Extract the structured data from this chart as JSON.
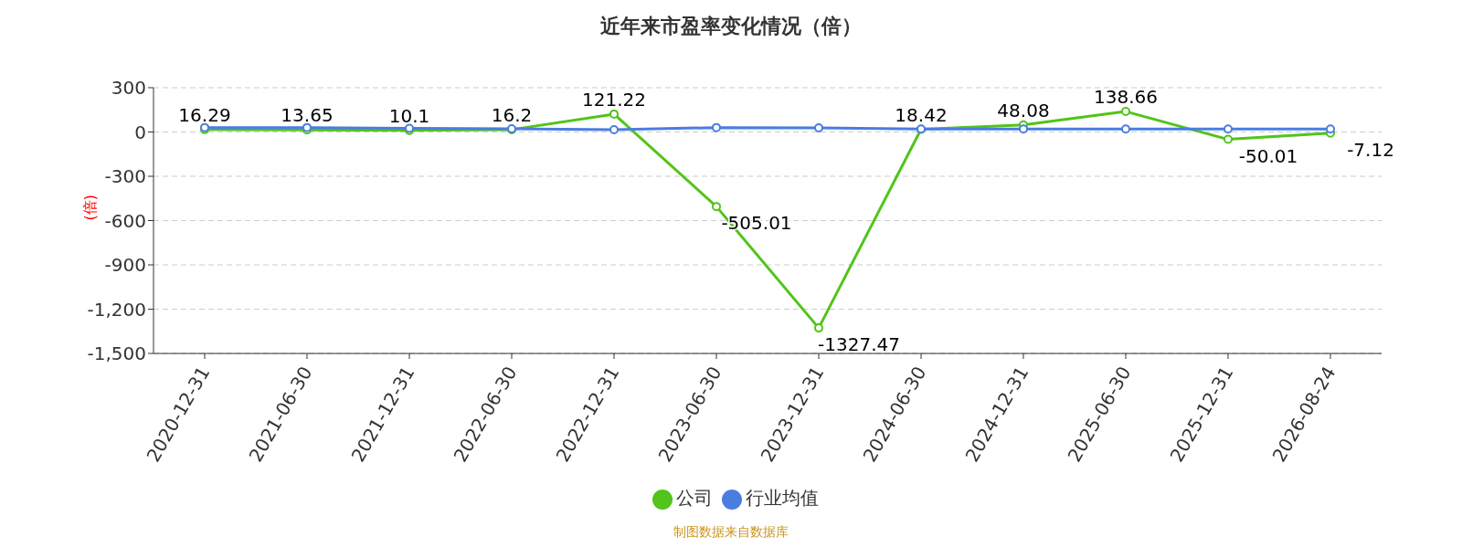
{
  "chart_data": {
    "type": "line",
    "title": "近年来市盈率变化情况（倍）",
    "ylabel": "(倍)",
    "categories": [
      "2020-12-31",
      "2021-06-30",
      "2021-12-31",
      "2022-06-30",
      "2022-12-31",
      "2023-06-30",
      "2023-12-31",
      "2024-06-30",
      "2024-12-31",
      "2025-06-30",
      "2025-12-31",
      "2026-08-24"
    ],
    "series": [
      {
        "name": "公司",
        "color": "#52c41a",
        "values": [
          16.29,
          13.65,
          10.1,
          16.2,
          121.22,
          -505.01,
          -1327.47,
          18.42,
          48.08,
          138.66,
          -50.01,
          -7.12
        ],
        "value_labels": [
          "16.29",
          "13.65",
          "10.1",
          "16.2",
          "121.22",
          "-505.01",
          "-1327.47",
          "18.42",
          "48.08",
          "138.66",
          "-50.01",
          "-7.12"
        ]
      },
      {
        "name": "行业均值",
        "color": "#4a7de0",
        "values": [
          30,
          30,
          25,
          22,
          15,
          30,
          28,
          20,
          20,
          20,
          20,
          20
        ]
      }
    ],
    "ylim": [
      -1500,
      300
    ],
    "yticks": [
      300,
      0,
      -300,
      -600,
      -900,
      {
        "value": -1200,
        "label": "-1,200"
      },
      {
        "value": -1500,
        "label": "-1,500"
      }
    ],
    "grid": "y",
    "legend": "bottom",
    "marker": "circle",
    "line_style": "solid",
    "annotations": [
      "制图数据来自数据库"
    ]
  }
}
